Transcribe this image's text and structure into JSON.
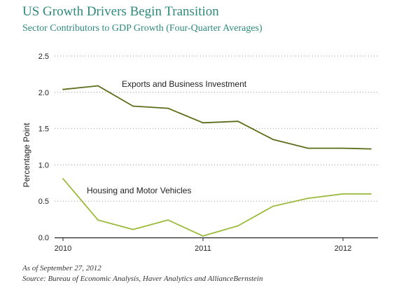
{
  "chart_data": {
    "type": "line",
    "title": "US Growth Drivers Begin Transition",
    "subtitle": "Sector Contributors to GDP Growth  (Four-Quarter Averages)",
    "ylabel": "Percentage Point",
    "xlabel": "",
    "ylim": [
      0,
      2.5
    ],
    "yticks": [
      "0.0",
      "0.5",
      "1.0",
      "1.5",
      "2.0",
      "2.5"
    ],
    "xlim": [
      2010.0,
      2012.25
    ],
    "xticks": [
      "2010",
      "2011",
      "2012"
    ],
    "grid": true,
    "series": [
      {
        "name": "Exports and Business Investment",
        "color": "#5a6e1a",
        "x": [
          2010.0,
          2010.25,
          2010.5,
          2010.75,
          2011.0,
          2011.25,
          2011.5,
          2011.75,
          2012.0,
          2012.2
        ],
        "values": [
          2.04,
          2.09,
          1.81,
          1.78,
          1.58,
          1.6,
          1.35,
          1.23,
          1.23,
          1.22
        ]
      },
      {
        "name": "Housing and Motor Vehicles",
        "color": "#9bbb3c",
        "x": [
          2010.0,
          2010.25,
          2010.5,
          2010.75,
          2011.0,
          2011.25,
          2011.5,
          2011.75,
          2012.0,
          2012.2
        ],
        "values": [
          0.81,
          0.24,
          0.11,
          0.24,
          0.02,
          0.16,
          0.43,
          0.54,
          0.6,
          0.6
        ]
      }
    ]
  },
  "footnotes": {
    "as_of": "As of September 27, 2012",
    "source": "Source: Bureau of Economic Analysis, Haver Analytics and AllianceBernstein"
  }
}
